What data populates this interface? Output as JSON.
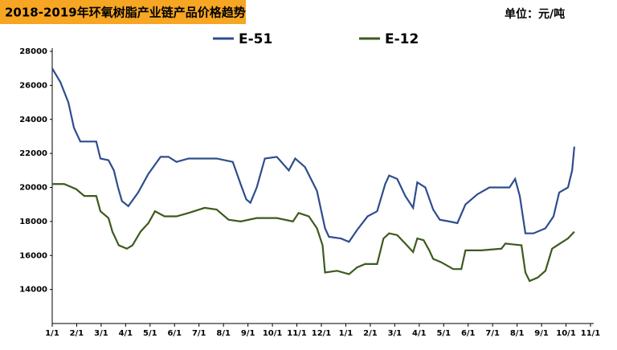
{
  "chart_data": {
    "type": "line",
    "title": "2018-2019年环氧树脂产业链产品价格趋势",
    "unit_label": "单位：元/吨",
    "xlim": [
      0,
      22
    ],
    "ylim": [
      12000,
      28000
    ],
    "xticks": [
      {
        "value": 0,
        "label": "1/1"
      },
      {
        "value": 1,
        "label": "2/1"
      },
      {
        "value": 2,
        "label": "3/1"
      },
      {
        "value": 3,
        "label": "4/1"
      },
      {
        "value": 4,
        "label": "5/1"
      },
      {
        "value": 5,
        "label": "6/1"
      },
      {
        "value": 6,
        "label": "7/1"
      },
      {
        "value": 7,
        "label": "8/1"
      },
      {
        "value": 8,
        "label": "9/1"
      },
      {
        "value": 9,
        "label": "10/1"
      },
      {
        "value": 10,
        "label": "11/1"
      },
      {
        "value": 11,
        "label": "12/1"
      },
      {
        "value": 12,
        "label": "1/1"
      },
      {
        "value": 13,
        "label": "2/1"
      },
      {
        "value": 14,
        "label": "3/1"
      },
      {
        "value": 15,
        "label": "4/1"
      },
      {
        "value": 16,
        "label": "5/1"
      },
      {
        "value": 17,
        "label": "6/1"
      },
      {
        "value": 18,
        "label": "7/1"
      },
      {
        "value": 19,
        "label": "8/1"
      },
      {
        "value": 20,
        "label": "9/1"
      },
      {
        "value": 21,
        "label": "10/1"
      },
      {
        "value": 22,
        "label": "11/1"
      }
    ],
    "yticks": [
      14000,
      16000,
      18000,
      20000,
      22000,
      24000,
      26000,
      28000
    ],
    "series": [
      {
        "name": "E-51",
        "color": "#2e4d8e",
        "x": [
          0,
          0.33,
          0.66,
          0.89,
          1.15,
          1.8,
          1.97,
          2.3,
          2.52,
          2.69,
          2.85,
          3.11,
          3.51,
          3.93,
          4.43,
          4.75,
          5.08,
          5.57,
          6.72,
          7.38,
          7.7,
          7.93,
          8.1,
          8.36,
          8.69,
          9.18,
          9.67,
          9.93,
          10.33,
          10.82,
          11.15,
          11.31,
          11.8,
          12.13,
          12.46,
          12.89,
          13.28,
          13.61,
          13.77,
          14.1,
          14.43,
          14.75,
          14.92,
          15.25,
          15.57,
          15.84,
          16.23,
          16.56,
          16.89,
          17.38,
          17.87,
          18.69,
          18.92,
          19.11,
          19.34,
          19.67,
          20.16,
          20.49,
          20.72,
          21.08,
          21.25,
          21.34
        ],
        "values": [
          27000,
          26200,
          25000,
          23500,
          22700,
          22700,
          21700,
          21600,
          21000,
          20000,
          19200,
          18900,
          19700,
          20800,
          21800,
          21800,
          21500,
          21700,
          21700,
          21500,
          20200,
          19300,
          19100,
          20000,
          21700,
          21800,
          21000,
          21700,
          21200,
          19800,
          17600,
          17100,
          17000,
          16800,
          17500,
          18300,
          18600,
          20200,
          20700,
          20500,
          19500,
          18800,
          20300,
          20000,
          18700,
          18100,
          18000,
          17900,
          19000,
          19600,
          20000,
          20000,
          20500,
          19500,
          17300,
          17300,
          17600,
          18300,
          19700,
          20000,
          21000,
          22400
        ]
      },
      {
        "name": "E-12",
        "color": "#3d5a1e",
        "x": [
          0,
          0.49,
          0.98,
          1.31,
          1.8,
          1.97,
          2.3,
          2.46,
          2.72,
          3.05,
          3.28,
          3.61,
          3.93,
          4.2,
          4.59,
          5.08,
          5.57,
          6.23,
          6.72,
          7.21,
          7.7,
          8.36,
          9.18,
          9.84,
          10.07,
          10.49,
          10.82,
          11.05,
          11.15,
          11.64,
          12.13,
          12.46,
          12.79,
          13.28,
          13.54,
          13.77,
          14.1,
          14.43,
          14.75,
          14.92,
          15.18,
          15.41,
          15.57,
          15.9,
          16.39,
          16.72,
          16.89,
          17.54,
          18.36,
          18.52,
          19.18,
          19.34,
          19.51,
          19.84,
          20.16,
          20.43,
          20.75,
          21.08,
          21.34
        ],
        "values": [
          20200,
          20200,
          19900,
          19500,
          19500,
          18600,
          18200,
          17400,
          16600,
          16400,
          16600,
          17400,
          17900,
          18600,
          18300,
          18300,
          18500,
          18800,
          18700,
          18100,
          18000,
          18200,
          18200,
          18000,
          18500,
          18300,
          17600,
          16600,
          15000,
          15100,
          14900,
          15300,
          15500,
          15500,
          17000,
          17300,
          17200,
          16700,
          16200,
          17000,
          16900,
          16300,
          15800,
          15600,
          15200,
          15200,
          16300,
          16300,
          16400,
          16700,
          16600,
          15000,
          14500,
          14700,
          15100,
          16400,
          16700,
          17000,
          17400
        ]
      }
    ]
  }
}
